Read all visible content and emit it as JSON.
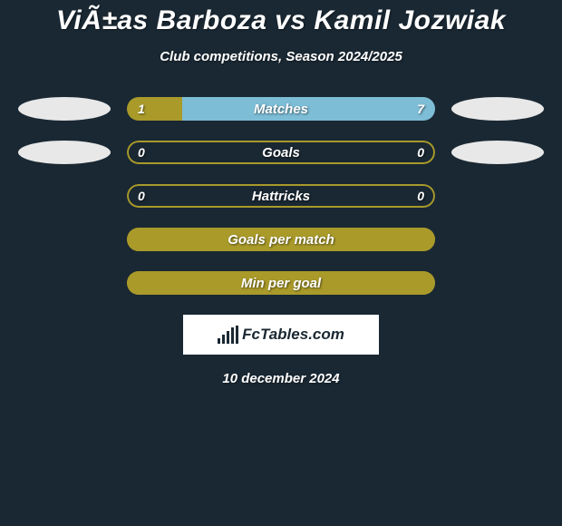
{
  "title": "ViÃ±as Barboza vs Kamil Jozwiak",
  "subtitle": "Club competitions, Season 2024/2025",
  "logo_text": "FcTables.com",
  "date": "10 december 2024",
  "colors": {
    "bg": "#1a2833",
    "olive": "#a99a2a",
    "oval": "#e8e8e8",
    "white": "#ffffff"
  },
  "stats": [
    {
      "label": "Matches",
      "left_value": "1",
      "right_value": "7",
      "left_pct": 18,
      "right_pct": 82,
      "left_color": "#a99a2a",
      "right_color": "#7dbdd6",
      "show_ovals": true,
      "show_values": true,
      "border_color": "transparent",
      "bg_color": "transparent"
    },
    {
      "label": "Goals",
      "left_value": "0",
      "right_value": "0",
      "left_pct": 0,
      "right_pct": 0,
      "left_color": "#a99a2a",
      "right_color": "#7dbdd6",
      "show_ovals": true,
      "show_values": true,
      "border_color": "#a99a2a",
      "bg_color": "#1a2833"
    },
    {
      "label": "Hattricks",
      "left_value": "0",
      "right_value": "0",
      "left_pct": 0,
      "right_pct": 0,
      "left_color": "#a99a2a",
      "right_color": "#7dbdd6",
      "show_ovals": false,
      "show_values": true,
      "border_color": "#a99a2a",
      "bg_color": "#1a2833"
    },
    {
      "label": "Goals per match",
      "left_value": "",
      "right_value": "",
      "left_pct": 0,
      "right_pct": 0,
      "left_color": "#a99a2a",
      "right_color": "#7dbdd6",
      "show_ovals": false,
      "show_values": false,
      "border_color": "#a99a2a",
      "bg_color": "#a99a2a"
    },
    {
      "label": "Min per goal",
      "left_value": "",
      "right_value": "",
      "left_pct": 0,
      "right_pct": 0,
      "left_color": "#a99a2a",
      "right_color": "#7dbdd6",
      "show_ovals": false,
      "show_values": false,
      "border_color": "#a99a2a",
      "bg_color": "#a99a2a"
    }
  ]
}
